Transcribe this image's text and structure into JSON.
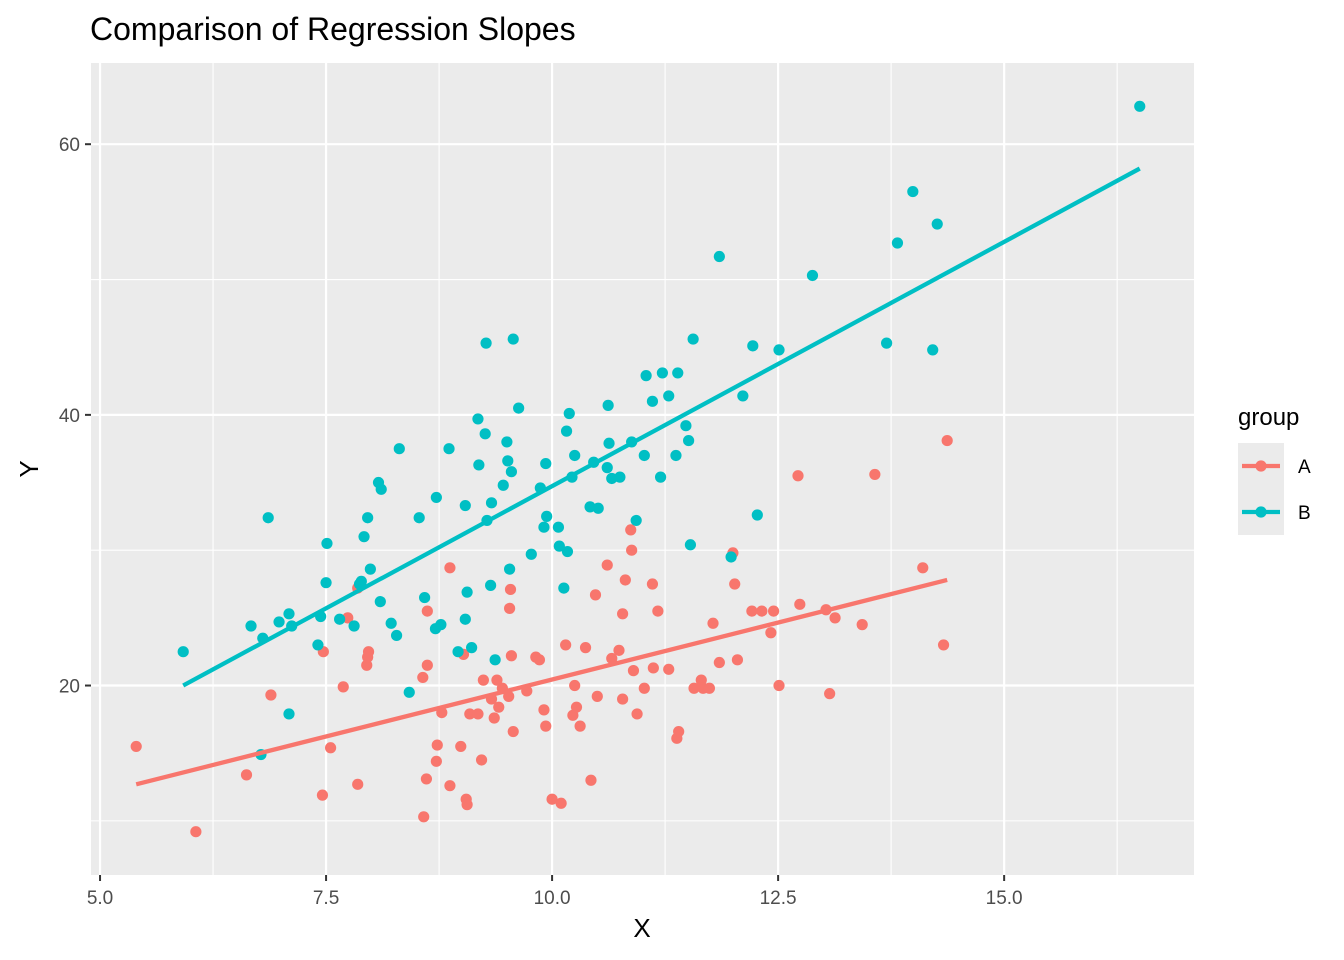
{
  "chart_data": {
    "type": "scatter",
    "title": "Comparison of Regression Slopes",
    "xlabel": "X",
    "ylabel": "Y",
    "xlim": [
      4.9,
      17.1
    ],
    "ylim": [
      6.0,
      66.0
    ],
    "x_ticks": [
      5.0,
      7.5,
      10.0,
      12.5,
      15.0
    ],
    "x_tick_labels": [
      "5.0",
      "7.5",
      "10.0",
      "12.5",
      "15.0"
    ],
    "y_ticks": [
      20,
      40,
      60
    ],
    "y_tick_labels": [
      "20",
      "40",
      "60"
    ],
    "grid": true,
    "legend": {
      "title": "group",
      "position": "right"
    },
    "series": [
      {
        "name": "A",
        "color": "#F8766D",
        "points": [
          [
            5.4,
            15.5
          ],
          [
            6.06,
            9.2
          ],
          [
            6.62,
            13.4
          ],
          [
            6.89,
            19.3
          ],
          [
            7.46,
            11.9
          ],
          [
            7.47,
            22.5
          ],
          [
            7.55,
            15.4
          ],
          [
            7.69,
            19.9
          ],
          [
            7.74,
            25.0
          ],
          [
            7.85,
            12.7
          ],
          [
            7.85,
            27.2
          ],
          [
            7.95,
            21.5
          ],
          [
            7.96,
            22.1
          ],
          [
            7.97,
            22.5
          ],
          [
            8.57,
            20.6
          ],
          [
            8.58,
            10.3
          ],
          [
            8.61,
            13.1
          ],
          [
            8.62,
            21.5
          ],
          [
            8.62,
            25.5
          ],
          [
            8.72,
            14.4
          ],
          [
            8.73,
            15.6
          ],
          [
            8.78,
            18.0
          ],
          [
            8.87,
            12.6
          ],
          [
            8.87,
            28.7
          ],
          [
            8.99,
            15.5
          ],
          [
            9.02,
            22.3
          ],
          [
            9.05,
            11.6
          ],
          [
            9.06,
            11.2
          ],
          [
            9.09,
            17.9
          ],
          [
            9.18,
            17.9
          ],
          [
            9.22,
            14.5
          ],
          [
            9.24,
            20.4
          ],
          [
            9.33,
            19.0
          ],
          [
            9.36,
            17.6
          ],
          [
            9.39,
            20.4
          ],
          [
            9.41,
            18.4
          ],
          [
            9.45,
            19.8
          ],
          [
            9.52,
            19.2
          ],
          [
            9.53,
            25.7
          ],
          [
            9.54,
            27.1
          ],
          [
            9.55,
            22.2
          ],
          [
            9.57,
            16.6
          ],
          [
            9.72,
            19.6
          ],
          [
            9.82,
            22.1
          ],
          [
            9.86,
            21.9
          ],
          [
            9.91,
            18.2
          ],
          [
            9.93,
            17.0
          ],
          [
            10.0,
            11.6
          ],
          [
            10.1,
            11.3
          ],
          [
            10.15,
            23.0
          ],
          [
            10.23,
            17.8
          ],
          [
            10.25,
            20.0
          ],
          [
            10.27,
            18.4
          ],
          [
            10.31,
            17.0
          ],
          [
            10.37,
            22.8
          ],
          [
            10.43,
            13.0
          ],
          [
            10.48,
            26.7
          ],
          [
            10.5,
            19.2
          ],
          [
            10.61,
            28.9
          ],
          [
            10.66,
            22.0
          ],
          [
            10.74,
            22.6
          ],
          [
            10.78,
            19.0
          ],
          [
            10.78,
            25.3
          ],
          [
            10.81,
            27.8
          ],
          [
            10.87,
            31.5
          ],
          [
            10.88,
            30.0
          ],
          [
            10.9,
            21.1
          ],
          [
            10.94,
            17.9
          ],
          [
            11.02,
            19.8
          ],
          [
            11.11,
            27.5
          ],
          [
            11.12,
            21.3
          ],
          [
            11.17,
            25.5
          ],
          [
            11.29,
            21.2
          ],
          [
            11.38,
            16.1
          ],
          [
            11.4,
            16.6
          ],
          [
            11.57,
            19.8
          ],
          [
            11.65,
            20.4
          ],
          [
            11.67,
            19.8
          ],
          [
            11.74,
            19.8
          ],
          [
            11.78,
            24.6
          ],
          [
            11.85,
            21.7
          ],
          [
            12.0,
            29.8
          ],
          [
            12.02,
            27.5
          ],
          [
            12.05,
            21.9
          ],
          [
            12.21,
            25.5
          ],
          [
            12.32,
            25.5
          ],
          [
            12.42,
            23.9
          ],
          [
            12.45,
            25.5
          ],
          [
            12.51,
            20.0
          ],
          [
            12.72,
            35.5
          ],
          [
            12.74,
            26.0
          ],
          [
            13.03,
            25.6
          ],
          [
            13.07,
            19.4
          ],
          [
            13.13,
            25.0
          ],
          [
            13.43,
            24.5
          ],
          [
            13.57,
            35.6
          ],
          [
            14.1,
            28.7
          ],
          [
            14.33,
            23.0
          ],
          [
            14.37,
            38.1
          ]
        ],
        "fit": {
          "x": [
            5.4,
            14.37
          ],
          "y": [
            12.7,
            27.8
          ]
        }
      },
      {
        "name": "B",
        "color": "#00BFC4",
        "points": [
          [
            5.92,
            22.5
          ],
          [
            6.67,
            24.4
          ],
          [
            6.78,
            14.9
          ],
          [
            6.8,
            23.5
          ],
          [
            6.86,
            32.4
          ],
          [
            6.98,
            24.7
          ],
          [
            7.09,
            25.3
          ],
          [
            7.09,
            17.9
          ],
          [
            7.12,
            24.4
          ],
          [
            7.41,
            23.0
          ],
          [
            7.44,
            25.1
          ],
          [
            7.5,
            27.6
          ],
          [
            7.51,
            30.5
          ],
          [
            7.65,
            24.9
          ],
          [
            7.81,
            24.4
          ],
          [
            7.87,
            27.5
          ],
          [
            7.89,
            27.7
          ],
          [
            7.92,
            31.0
          ],
          [
            7.96,
            32.4
          ],
          [
            7.99,
            28.6
          ],
          [
            8.08,
            35.0
          ],
          [
            8.1,
            26.2
          ],
          [
            8.11,
            34.5
          ],
          [
            8.22,
            24.6
          ],
          [
            8.28,
            23.7
          ],
          [
            8.31,
            37.5
          ],
          [
            8.42,
            19.5
          ],
          [
            8.53,
            32.4
          ],
          [
            8.59,
            26.5
          ],
          [
            8.71,
            24.2
          ],
          [
            8.72,
            33.9
          ],
          [
            8.77,
            24.5
          ],
          [
            8.86,
            37.5
          ],
          [
            8.96,
            22.5
          ],
          [
            9.04,
            24.9
          ],
          [
            9.04,
            33.3
          ],
          [
            9.06,
            26.9
          ],
          [
            9.11,
            22.8
          ],
          [
            9.18,
            39.7
          ],
          [
            9.19,
            36.3
          ],
          [
            9.26,
            38.6
          ],
          [
            9.27,
            45.3
          ],
          [
            9.28,
            32.2
          ],
          [
            9.32,
            27.4
          ],
          [
            9.33,
            33.5
          ],
          [
            9.37,
            21.9
          ],
          [
            9.46,
            34.8
          ],
          [
            9.5,
            38.0
          ],
          [
            9.51,
            36.6
          ],
          [
            9.53,
            28.6
          ],
          [
            9.55,
            35.8
          ],
          [
            9.57,
            45.6
          ],
          [
            9.63,
            40.5
          ],
          [
            9.77,
            29.7
          ],
          [
            9.87,
            34.6
          ],
          [
            9.91,
            31.7
          ],
          [
            9.93,
            36.4
          ],
          [
            9.94,
            32.5
          ],
          [
            10.07,
            31.7
          ],
          [
            10.08,
            30.3
          ],
          [
            10.13,
            27.2
          ],
          [
            10.16,
            38.8
          ],
          [
            10.17,
            29.9
          ],
          [
            10.19,
            40.1
          ],
          [
            10.22,
            35.4
          ],
          [
            10.25,
            37.0
          ],
          [
            10.42,
            33.2
          ],
          [
            10.46,
            36.5
          ],
          [
            10.51,
            33.1
          ],
          [
            10.61,
            36.1
          ],
          [
            10.62,
            40.7
          ],
          [
            10.63,
            37.9
          ],
          [
            10.66,
            35.3
          ],
          [
            10.75,
            35.4
          ],
          [
            10.88,
            38.0
          ],
          [
            10.93,
            32.2
          ],
          [
            11.02,
            37.0
          ],
          [
            11.04,
            42.9
          ],
          [
            11.11,
            41.0
          ],
          [
            11.2,
            35.4
          ],
          [
            11.22,
            43.1
          ],
          [
            11.29,
            41.4
          ],
          [
            11.37,
            37.0
          ],
          [
            11.39,
            43.1
          ],
          [
            11.48,
            39.2
          ],
          [
            11.51,
            38.1
          ],
          [
            11.53,
            30.4
          ],
          [
            11.56,
            45.6
          ],
          [
            11.85,
            51.7
          ],
          [
            11.98,
            29.5
          ],
          [
            12.11,
            41.4
          ],
          [
            12.22,
            45.1
          ],
          [
            12.27,
            32.6
          ],
          [
            12.51,
            44.8
          ],
          [
            12.88,
            50.3
          ],
          [
            13.7,
            45.3
          ],
          [
            13.82,
            52.7
          ],
          [
            13.99,
            56.5
          ],
          [
            14.21,
            44.8
          ],
          [
            14.26,
            54.1
          ],
          [
            16.5,
            62.8
          ]
        ],
        "fit": {
          "x": [
            5.92,
            16.5
          ],
          "y": [
            20.0,
            58.2
          ]
        }
      }
    ]
  }
}
